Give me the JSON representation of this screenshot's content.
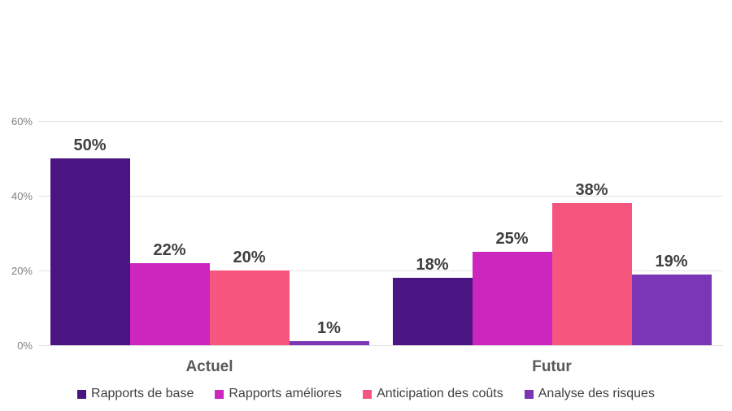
{
  "chart_data": {
    "type": "bar",
    "categories": [
      "Actuel",
      "Futur"
    ],
    "series": [
      {
        "name": "Rapports de base",
        "color": "#4a1582",
        "values": [
          50,
          18
        ]
      },
      {
        "name": "Rapports améliores",
        "color": "#cc26bf",
        "values": [
          22,
          25
        ]
      },
      {
        "name": "Anticipation des coûts",
        "color": "#f6557e",
        "values": [
          20,
          38
        ]
      },
      {
        "name": "Analyse des risques",
        "color": "#7a36b4",
        "values": [
          1,
          19
        ]
      }
    ],
    "data_label_suffix": "%",
    "yticks": [
      {
        "value": 0,
        "label": "0%"
      },
      {
        "value": 20,
        "label": "20%"
      },
      {
        "value": 40,
        "label": "40%"
      },
      {
        "value": 60,
        "label": "60%"
      }
    ],
    "ylim": [
      0,
      60
    ],
    "grid": "horizontal",
    "legend_position": "bottom",
    "title": "",
    "xlabel": "",
    "ylabel": "",
    "colors": {
      "gridline": "#e2e2e2",
      "tick_text": "#7f7f7f",
      "data_label_text": "#3f3f3f",
      "category_text": "#595959",
      "legend_text": "#404040",
      "background": "#ffffff"
    }
  }
}
